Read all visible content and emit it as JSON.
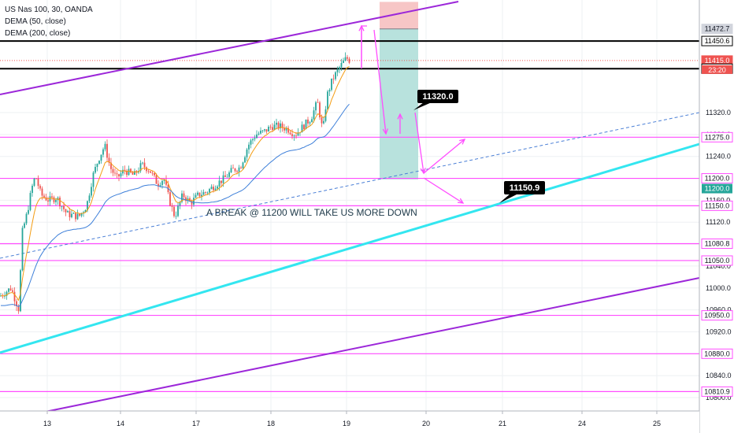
{
  "legend": {
    "symbol": "US Nas 100, 30, OANDA",
    "ind1": "DEMA (50, close)",
    "ind2": "DEMA (200, close)"
  },
  "colors": {
    "magenta": "#ff4dff",
    "purple": "#9c27d9",
    "cyan": "#33e6f0",
    "candle_up": "#26a69a",
    "candle_down": "#ef5350",
    "dema50": "#f39c12",
    "dema200": "#3d7fd9",
    "black_line": "#000000",
    "profit_zone": "#b8e2dd",
    "loss_zone": "#f7c6c6"
  },
  "chart_data": {
    "type": "line",
    "title": "",
    "x_ticks": [
      "13",
      "14",
      "17",
      "18",
      "19",
      "20",
      "21",
      "24",
      "25"
    ],
    "y_ticks": [
      "11320.0",
      "11280.0",
      "11240.0",
      "11200.0",
      "11160.0",
      "11120.0",
      "11080.0",
      "11040.0",
      "11000.0",
      "10960.0",
      "10920.0",
      "10880.0",
      "10840.0",
      "10800.0"
    ],
    "ylim": [
      10780,
      11520
    ],
    "horizontal_levels": [
      {
        "value": 11472.7,
        "label": "11472.7",
        "style": "grey"
      },
      {
        "value": 11450.6,
        "label": "11450.6",
        "style": "black"
      },
      {
        "value": 11415.0,
        "label": "11415.0",
        "style": "price"
      },
      {
        "value": 11400.1,
        "label": "11400.1",
        "style": "black"
      },
      {
        "value": 11275.0,
        "label": "11275.0",
        "style": "magenta"
      },
      {
        "value": 11200.0,
        "label": "11200.0",
        "style": "magenta"
      },
      {
        "value": 11150.0,
        "label": "11150.0",
        "style": "magenta"
      },
      {
        "value": 11080.8,
        "label": "11080.8",
        "style": "magenta"
      },
      {
        "value": 11050.0,
        "label": "11050.0",
        "style": "magenta"
      },
      {
        "value": 10950.0,
        "label": "10950.0",
        "style": "magenta"
      },
      {
        "value": 10880.0,
        "label": "10880.0",
        "style": "magenta"
      },
      {
        "value": 10810.9,
        "label": "10810.9",
        "style": "magenta"
      }
    ],
    "last_price_tag": "11200.0",
    "countdown": "23:20",
    "callouts": [
      "11320.0",
      "11150.9"
    ],
    "annotation": "A BREAK @ 11200 WILL TAKE US MORE DOWN"
  }
}
